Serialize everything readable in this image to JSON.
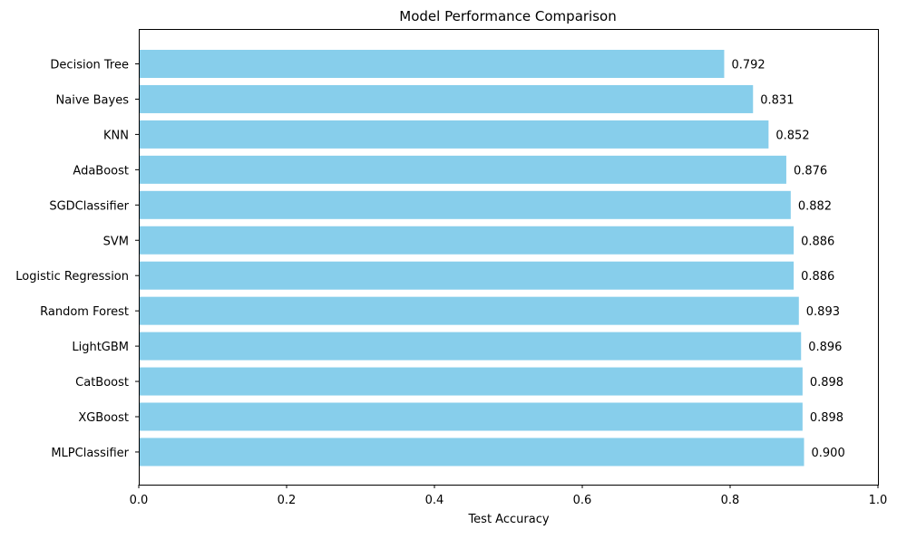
{
  "chart_data": {
    "type": "bar",
    "orientation": "horizontal",
    "title": "Model Performance Comparison",
    "xlabel": "Test Accuracy",
    "ylabel": "",
    "xlim": [
      0,
      1
    ],
    "xticks": [
      "0.0",
      "0.2",
      "0.4",
      "0.6",
      "0.8",
      "1.0"
    ],
    "grid": false,
    "bar_color": "#87CEEB",
    "categories": [
      "Decision Tree",
      "Naive Bayes",
      "KNN",
      "AdaBoost",
      "SGDClassifier",
      "SVM",
      "Logistic Regression",
      "Random Forest",
      "LightGBM",
      "CatBoost",
      "XGBoost",
      "MLPClassifier"
    ],
    "values": [
      0.792,
      0.831,
      0.852,
      0.876,
      0.882,
      0.886,
      0.886,
      0.893,
      0.896,
      0.898,
      0.898,
      0.9
    ],
    "value_labels": [
      "0.792",
      "0.831",
      "0.852",
      "0.876",
      "0.882",
      "0.886",
      "0.886",
      "0.893",
      "0.896",
      "0.898",
      "0.898",
      "0.900"
    ]
  }
}
